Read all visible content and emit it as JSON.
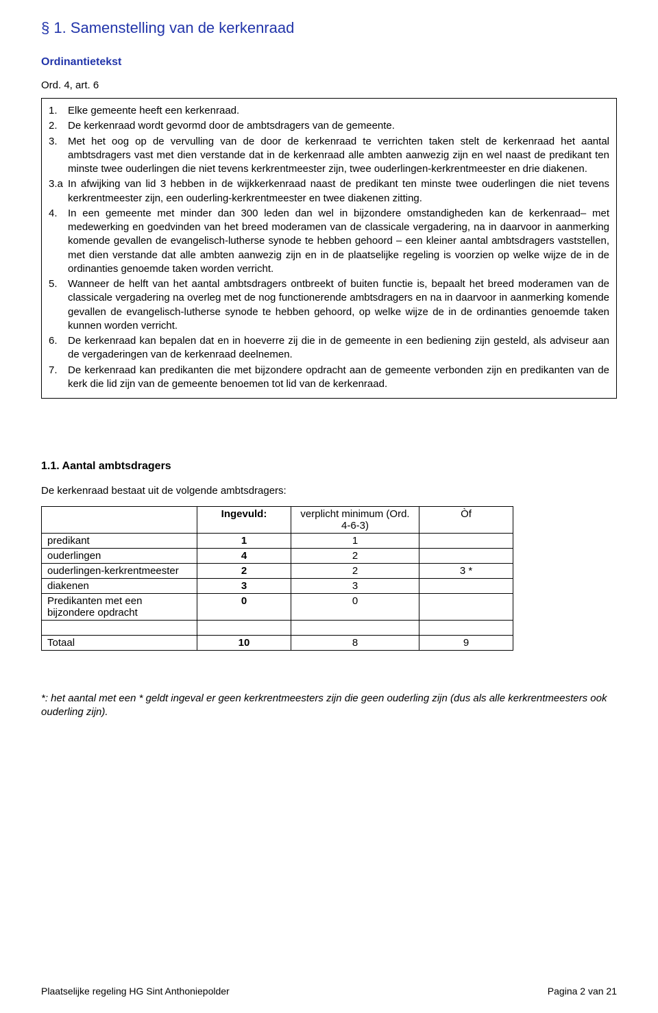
{
  "heading": "§ 1. Samenstelling van de kerkenraad",
  "subhead": "Ordinantietekst",
  "ord_ref": "Ord. 4, art. 6",
  "ordbox": {
    "items": [
      {
        "num": "1.",
        "text": "Elke gemeente heeft een kerkenraad."
      },
      {
        "num": "2.",
        "text": "De kerkenraad wordt gevormd door de ambtsdragers van de gemeente."
      },
      {
        "num": "3.",
        "text": "Met het oog op de vervulling van de door de kerkenraad te verrichten taken stelt de kerkenraad het aantal ambtsdragers vast met dien verstande dat in de kerkenraad alle ambten aanwezig zijn en wel naast de predikant ten minste twee ouderlingen die niet tevens kerkrentmeester zijn, twee ouderlingen-kerkrentmeester en drie diakenen."
      },
      {
        "num": "3.a",
        "text": "In afwijking van lid 3 hebben in de wijkkerkenraad naast de predikant ten minste twee ouderlingen die niet tevens kerkrentmeester zijn, een ouderling-kerkrentmeester en twee diakenen zitting."
      },
      {
        "num": "4.",
        "text": "In een gemeente met minder dan 300 leden dan wel in bijzondere omstandigheden kan de kerkenraad– met medewerking en goedvinden van het breed moderamen van de classicale vergadering, na in daarvoor in aanmerking komende gevallen de evangelisch-lutherse synode te hebben gehoord – een kleiner aantal ambtsdragers vaststellen, met dien verstande dat alle ambten aanwezig zijn en in de plaatselijke regeling is voorzien op welke wijze de in de ordinanties genoemde taken worden verricht."
      },
      {
        "num": "5.",
        "text": "Wanneer de helft van het aantal ambtsdragers ontbreekt of buiten functie is, bepaalt het breed moderamen van de classicale vergadering na overleg met de nog functionerende ambtsdragers en na in daarvoor in aanmerking komende gevallen de evangelisch-lutherse synode te hebben gehoord, op welke wijze de in de ordinanties genoemde taken kunnen worden verricht."
      },
      {
        "num": "6.",
        "text": "De kerkenraad kan bepalen dat en in hoeverre zij die in de gemeente in een bediening zijn gesteld, als adviseur aan de vergaderingen van de kerkenraad deelnemen."
      },
      {
        "num": "7.",
        "text": "De kerkenraad kan predikanten die met bijzondere opdracht aan de gemeente verbonden zijn en predikanten van de kerk die lid zijn van de gemeente benoemen tot lid van de kerkenraad."
      }
    ]
  },
  "section": {
    "heading": "1.1. Aantal ambtsdragers",
    "sentence": "De kerkenraad bestaat uit de volgende ambtsdragers:"
  },
  "table": {
    "headers": {
      "blank": "",
      "ingevuld": "Ingevuld:",
      "min": "verplicht minimum (Ord. 4-6-3)",
      "of": "Òf"
    },
    "rows": [
      {
        "label": "predikant",
        "ingevuld": "1",
        "min": "1",
        "of": ""
      },
      {
        "label": "ouderlingen",
        "ingevuld": "4",
        "min": "2",
        "of": ""
      },
      {
        "label": "ouderlingen-kerkrentmeester",
        "ingevuld": "2",
        "min": "2",
        "of": "3 *"
      },
      {
        "label": "diakenen",
        "ingevuld": "3",
        "min": "3",
        "of": ""
      },
      {
        "label": "Predikanten met een bijzondere opdracht",
        "ingevuld": "0",
        "min": "0",
        "of": ""
      }
    ],
    "blank_row": true,
    "total": {
      "label": "Totaal",
      "ingevuld": "10",
      "min": "8",
      "of": "9"
    }
  },
  "footnote": "*: het aantal met een * geldt  ingeval er geen kerkrentmeesters zijn die geen ouderling zijn (dus als alle kerkrentmeesters ook ouderling zijn).",
  "footer": {
    "left": "Plaatselijke regeling HG Sint Anthoniepolder",
    "right": "Pagina 2 van 21"
  }
}
